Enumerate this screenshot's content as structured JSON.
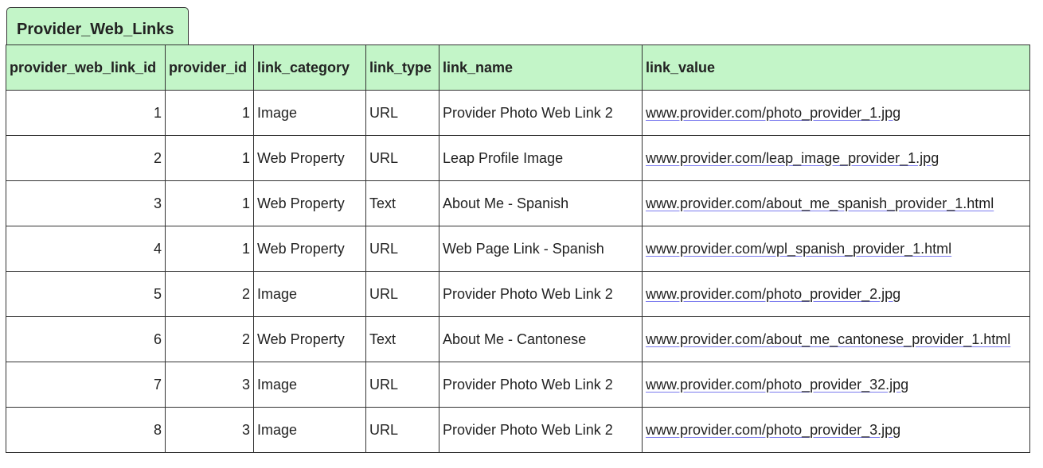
{
  "title": "Provider_Web_Links",
  "columns": [
    "provider_web_link_id",
    "provider_id",
    "link_category",
    "link_type",
    "link_name",
    "link_value"
  ],
  "rows": [
    [
      "1",
      "1",
      "Image",
      "URL",
      "Provider Photo Web Link 2",
      "www.provider.com/photo_provider_1.jpg"
    ],
    [
      "2",
      "1",
      "Web Property",
      "URL",
      "Leap Profile Image",
      "www.provider.com/leap_image_provider_1.jpg"
    ],
    [
      "3",
      "1",
      "Web Property",
      "Text",
      "About Me - Spanish",
      "www.provider.com/about_me_spanish_provider_1.html"
    ],
    [
      "4",
      "1",
      "Web Property",
      "URL",
      "Web Page Link - Spanish",
      "www.provider.com/wpl_spanish_provider_1.html"
    ],
    [
      "5",
      "2",
      "Image",
      "URL",
      "Provider Photo Web Link 2",
      "www.provider.com/photo_provider_2.jpg"
    ],
    [
      "6",
      "2",
      "Web Property",
      "Text",
      "About Me - Cantonese",
      "www.provider.com/about_me_cantonese_provider_1.html"
    ],
    [
      "7",
      "3",
      "Image",
      "URL",
      "Provider Photo Web Link 2",
      "www.provider.com/photo_provider_32.jpg"
    ],
    [
      "8",
      "3",
      "Image",
      "URL",
      "Provider Photo Web Link 2",
      "www.provider.com/photo_provider_3.jpg"
    ]
  ],
  "colors": {
    "header_bg": "#c3f5c8",
    "border": "#333333"
  }
}
